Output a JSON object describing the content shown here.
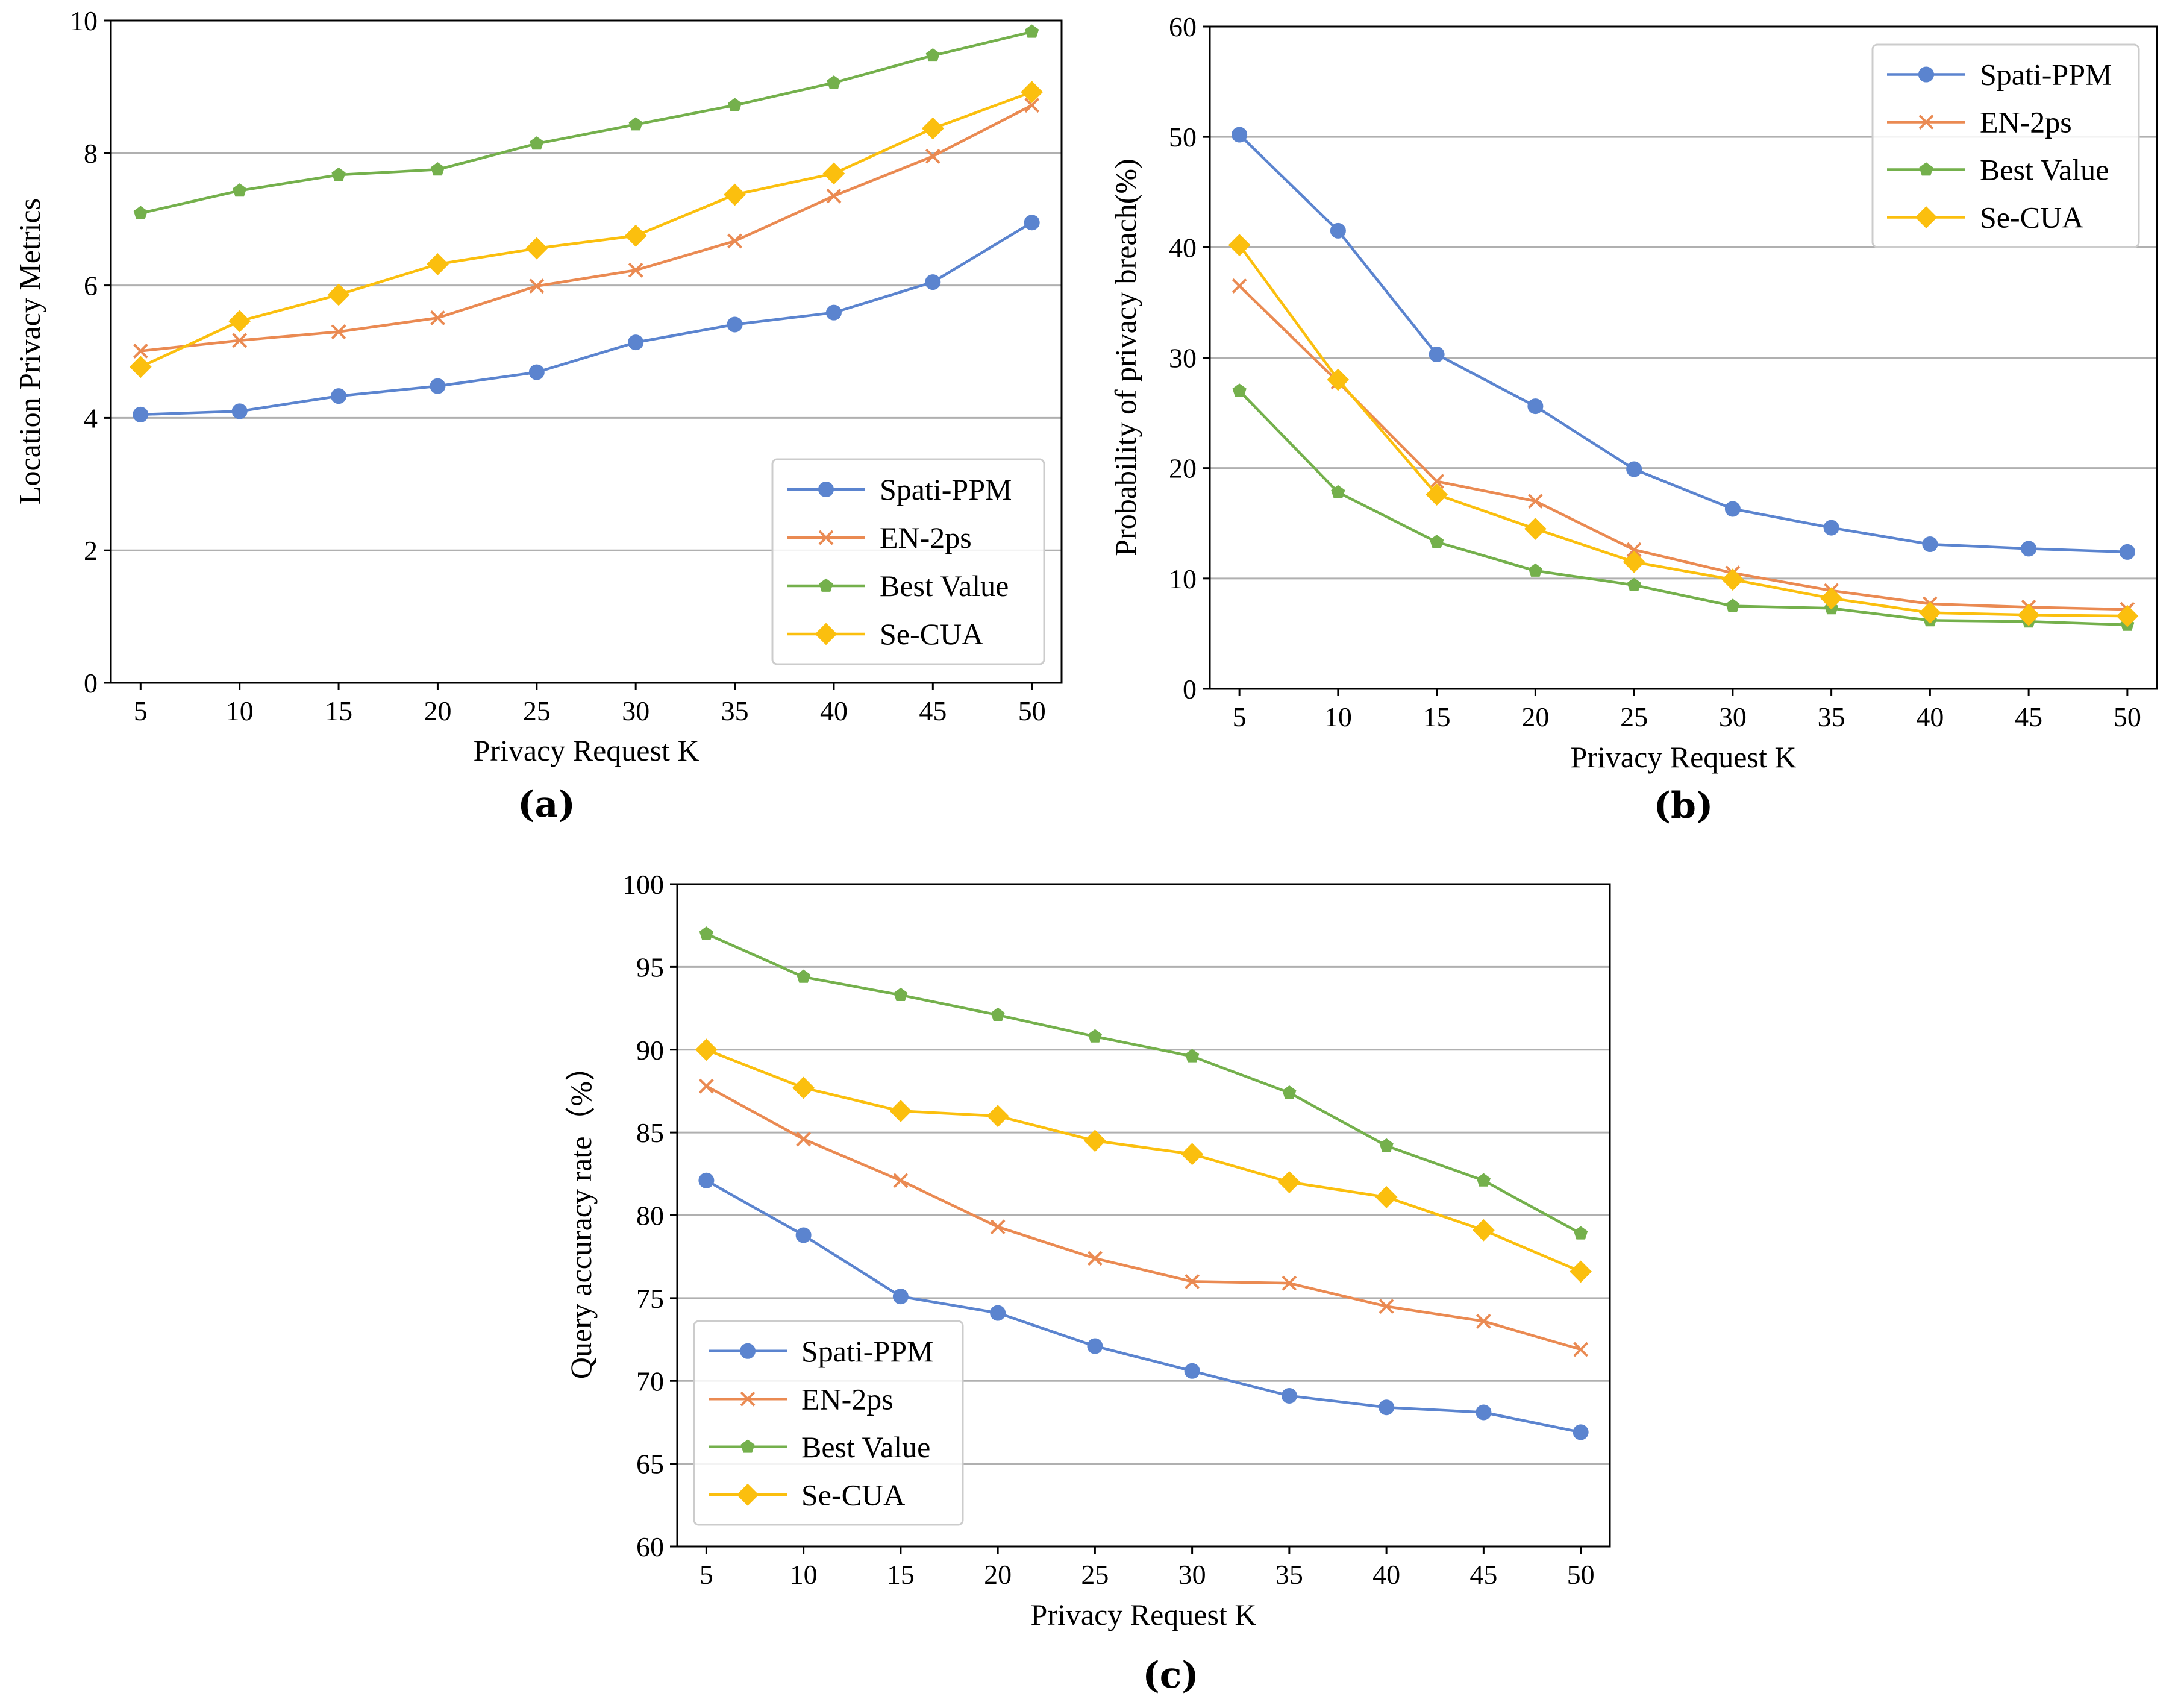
{
  "colors": {
    "spati": "#5b84cf",
    "en2ps": "#ea8a52",
    "best": "#74b04c",
    "secua": "#fbbf0e"
  },
  "chart_data": [
    {
      "panel": "(a)",
      "type": "line",
      "xlabel": "Privacy Request K",
      "ylabel": "Location Privacy Metrics",
      "x": [
        5,
        10,
        15,
        20,
        25,
        30,
        35,
        40,
        45,
        50
      ],
      "xlim": [
        3.5,
        51.5
      ],
      "ylim": [
        0,
        10
      ],
      "yticks": [
        0,
        2,
        4,
        6,
        8,
        10
      ],
      "legend_position": "bottom-right",
      "series": [
        {
          "name": "Spati-PPM",
          "marker": "circle",
          "color_key": "spati",
          "values": [
            4.05,
            4.1,
            4.33,
            4.48,
            4.69,
            5.14,
            5.41,
            5.59,
            6.05,
            6.95
          ]
        },
        {
          "name": "EN-2ps",
          "marker": "x",
          "color_key": "en2ps",
          "values": [
            5.01,
            5.17,
            5.3,
            5.51,
            5.99,
            6.23,
            6.67,
            7.35,
            7.95,
            8.72
          ]
        },
        {
          "name": "Best Value",
          "marker": "pentagon",
          "color_key": "best",
          "values": [
            7.09,
            7.43,
            7.67,
            7.75,
            8.14,
            8.43,
            8.72,
            9.06,
            9.47,
            9.83
          ]
        },
        {
          "name": "Se-CUA",
          "marker": "diamond",
          "color_key": "secua",
          "values": [
            4.77,
            5.46,
            5.86,
            6.32,
            6.56,
            6.75,
            7.37,
            7.69,
            8.37,
            8.92
          ]
        }
      ]
    },
    {
      "panel": "(b)",
      "type": "line",
      "xlabel": "Privacy Request K",
      "ylabel": "Probability of privacy breach(%)",
      "x": [
        5,
        10,
        15,
        20,
        25,
        30,
        35,
        40,
        45,
        50
      ],
      "xlim": [
        3.5,
        51.5
      ],
      "ylim": [
        0,
        60
      ],
      "yticks": [
        0,
        10,
        20,
        30,
        40,
        50,
        60
      ],
      "legend_position": "top-right",
      "series": [
        {
          "name": "Spati-PPM",
          "marker": "circle",
          "color_key": "spati",
          "values": [
            50.2,
            41.5,
            30.3,
            25.6,
            19.9,
            16.3,
            14.6,
            13.1,
            12.7,
            12.4
          ]
        },
        {
          "name": "EN-2ps",
          "marker": "x",
          "color_key": "en2ps",
          "values": [
            36.5,
            27.8,
            18.8,
            17.0,
            12.6,
            10.5,
            8.9,
            7.7,
            7.4,
            7.2
          ]
        },
        {
          "name": "Best Value",
          "marker": "pentagon",
          "color_key": "best",
          "values": [
            27.0,
            17.8,
            13.3,
            10.7,
            9.4,
            7.5,
            7.3,
            6.2,
            6.1,
            5.8
          ]
        },
        {
          "name": "Se-CUA",
          "marker": "diamond",
          "color_key": "secua",
          "values": [
            40.2,
            28.0,
            17.6,
            14.5,
            11.5,
            9.9,
            8.2,
            6.9,
            6.7,
            6.6
          ]
        }
      ]
    },
    {
      "panel": "(c)",
      "type": "line",
      "xlabel": "Privacy Request K",
      "ylabel": "Query accuracy rate（%）",
      "x": [
        5,
        10,
        15,
        20,
        25,
        30,
        35,
        40,
        45,
        50
      ],
      "xlim": [
        3.5,
        51.5
      ],
      "ylim": [
        60,
        100
      ],
      "yticks": [
        60,
        65,
        70,
        75,
        80,
        85,
        90,
        95,
        100
      ],
      "legend_position": "bottom-left",
      "series": [
        {
          "name": "Spati-PPM",
          "marker": "circle",
          "color_key": "spati",
          "values": [
            82.1,
            78.8,
            75.1,
            74.1,
            72.1,
            70.6,
            69.1,
            68.4,
            68.1,
            66.9
          ]
        },
        {
          "name": "EN-2ps",
          "marker": "x",
          "color_key": "en2ps",
          "values": [
            87.8,
            84.6,
            82.1,
            79.3,
            77.4,
            76.0,
            75.9,
            74.5,
            73.6,
            71.9
          ]
        },
        {
          "name": "Best Value",
          "marker": "pentagon",
          "color_key": "best",
          "values": [
            97.0,
            94.4,
            93.3,
            92.1,
            90.8,
            89.6,
            87.4,
            84.2,
            82.1,
            78.9
          ]
        },
        {
          "name": "Se-CUA",
          "marker": "diamond",
          "color_key": "secua",
          "values": [
            90.0,
            87.7,
            86.3,
            86.0,
            84.5,
            83.7,
            82.0,
            81.1,
            79.1,
            76.6
          ]
        }
      ]
    }
  ]
}
